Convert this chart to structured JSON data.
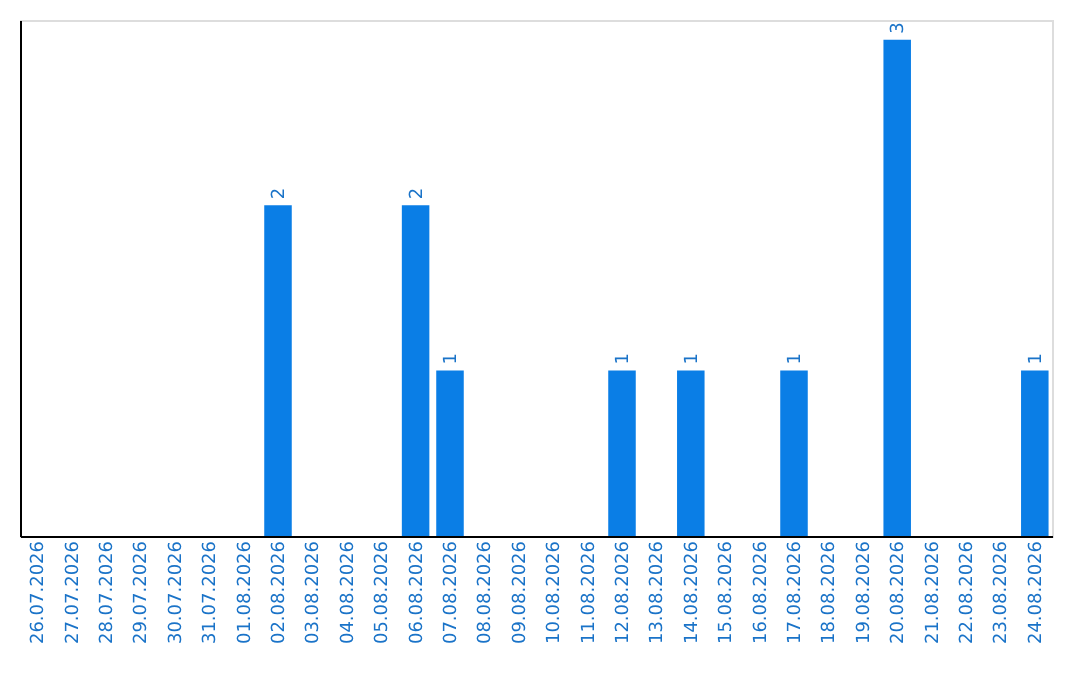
{
  "chart_data": {
    "type": "bar",
    "categories": [
      "26.07.2026",
      "27.07.2026",
      "28.07.2026",
      "29.07.2026",
      "30.07.2026",
      "31.07.2026",
      "01.08.2026",
      "02.08.2026",
      "03.08.2026",
      "04.08.2026",
      "05.08.2026",
      "06.08.2026",
      "07.08.2026",
      "08.08.2026",
      "09.08.2026",
      "10.08.2026",
      "11.08.2026",
      "12.08.2026",
      "13.08.2026",
      "14.08.2026",
      "15.08.2026",
      "16.08.2026",
      "17.08.2026",
      "18.08.2026",
      "19.08.2026",
      "20.08.2026",
      "21.08.2026",
      "22.08.2026",
      "23.08.2026",
      "24.08.2026"
    ],
    "values": [
      0,
      0,
      0,
      0,
      0,
      0,
      0,
      2,
      0,
      0,
      0,
      2,
      1,
      0,
      0,
      0,
      0,
      1,
      0,
      1,
      0,
      0,
      1,
      0,
      0,
      3,
      0,
      0,
      0,
      1
    ],
    "value_labels": [
      null,
      null,
      null,
      null,
      null,
      null,
      null,
      "2",
      null,
      null,
      null,
      "2",
      "1",
      null,
      null,
      null,
      null,
      "1",
      null,
      "1",
      null,
      null,
      "1",
      null,
      null,
      "3",
      null,
      null,
      null,
      "1"
    ],
    "color": "#0a7ee6",
    "tick_labels": "x",
    "grid": false
  }
}
